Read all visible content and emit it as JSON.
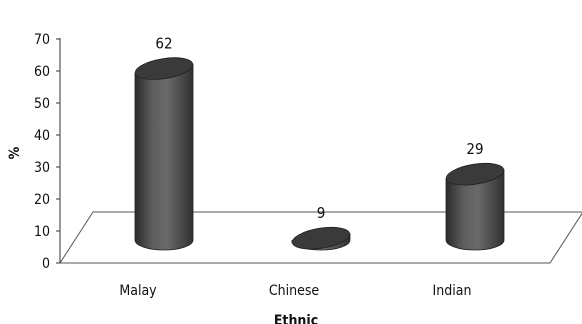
{
  "chart_data": {
    "type": "bar",
    "style": "3d-cylinder",
    "categories": [
      "Malay",
      "Chinese",
      "Indian"
    ],
    "values": [
      62,
      9,
      29
    ],
    "data_labels": [
      "62",
      "9",
      "29"
    ],
    "xlabel": "Ethnic",
    "ylabel": "%",
    "ylim": [
      0,
      70
    ],
    "yticks": [
      "0",
      "10",
      "20",
      "30",
      "40",
      "50",
      "60",
      "70"
    ],
    "grid": false,
    "legend": "none",
    "colors": {
      "bar": "#4a4a4a",
      "bar_top": "#3a3a3a",
      "floor": "#555555",
      "axis": "#333333"
    }
  }
}
